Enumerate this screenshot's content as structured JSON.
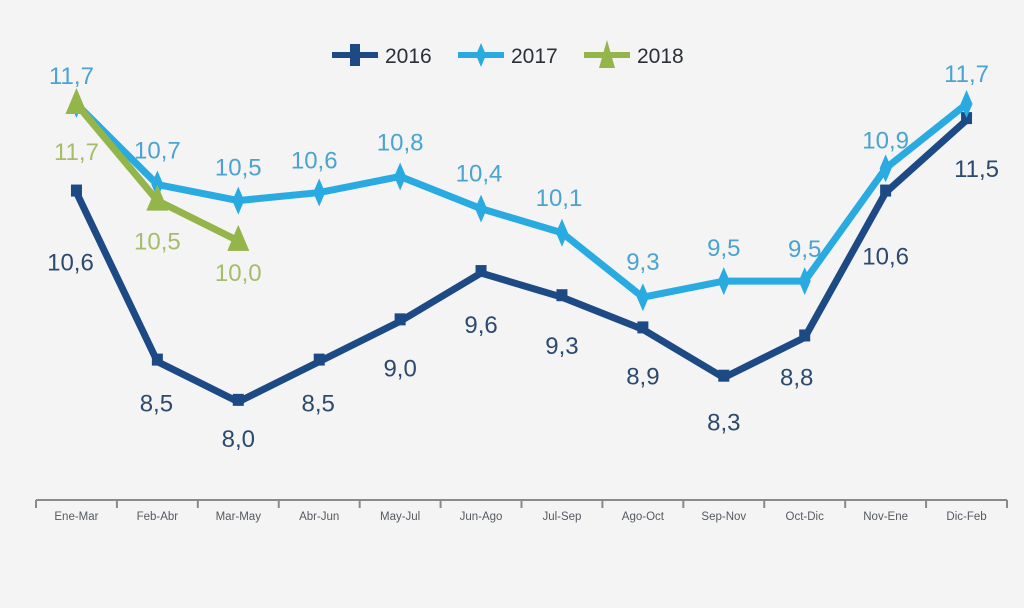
{
  "chart_data": {
    "type": "line",
    "title": "",
    "xlabel": "",
    "ylabel": "",
    "categories": [
      "Ene-Mar",
      "Feb-Abr",
      "Mar-May",
      "Abr-Jun",
      "May-Jul",
      "Jun-Ago",
      "Jul-Sep",
      "Ago-Oct",
      "Sep-Nov",
      "Oct-Dic",
      "Nov-Ene",
      "Dic-Feb"
    ],
    "ylim": [
      6.6,
      12.8
    ],
    "grid": false,
    "legend_position": "top-center",
    "series": [
      {
        "name": "2016",
        "color": "#1d4a85",
        "label_color": "#2c4a6e",
        "marker": "square-cross",
        "values": [
          10.6,
          8.5,
          8.0,
          8.5,
          9.0,
          9.6,
          9.3,
          8.9,
          8.3,
          8.8,
          10.6,
          11.5
        ],
        "labels": [
          "10,6",
          "8,5",
          "8,0",
          "8,5",
          "9,0",
          "9,6",
          "9,3",
          "8,9",
          "8,3",
          "8,8",
          "10,6",
          "11,5"
        ]
      },
      {
        "name": "2017",
        "color": "#29abe2",
        "label_color": "#4aa3d0",
        "marker": "diamond",
        "values": [
          11.7,
          10.7,
          10.5,
          10.6,
          10.8,
          10.4,
          10.1,
          9.3,
          9.5,
          9.5,
          10.9,
          11.7
        ],
        "labels": [
          "11,7",
          "10,7",
          "10,5",
          "10,6",
          "10,8",
          "10,4",
          "10,1",
          "9,3",
          "9,5",
          "9,5",
          "10,9",
          "11,7"
        ]
      },
      {
        "name": "2018",
        "color": "#93b54a",
        "label_color": "#a5bd6a",
        "marker": "triangle",
        "values": [
          11.7,
          10.5,
          10.0
        ],
        "labels": [
          "11,7",
          "10,5",
          "10,0"
        ]
      }
    ]
  }
}
